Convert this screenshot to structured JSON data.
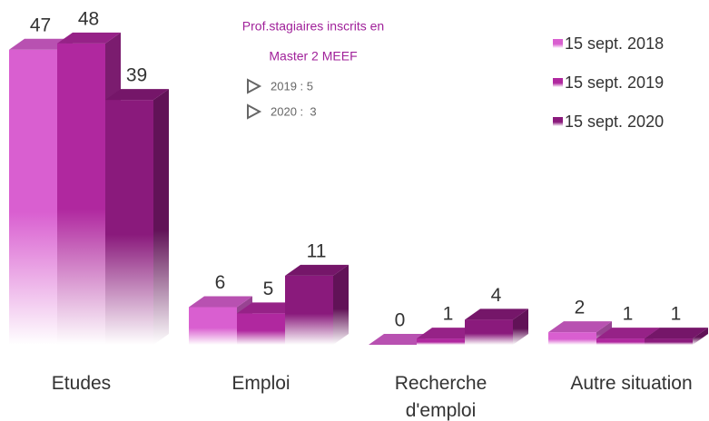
{
  "chart_data": {
    "type": "bar3d",
    "categories": [
      "Etudes",
      "Emploi",
      "Recherche\nd'emploi",
      "Autre situation"
    ],
    "series": [
      {
        "name": "15 sept. 2018",
        "color": "#d95fd0",
        "values": [
          47,
          6,
          0,
          2
        ]
      },
      {
        "name": "15 sept. 2019",
        "color": "#b0289f",
        "values": [
          48,
          5,
          1,
          1
        ]
      },
      {
        "name": "15 sept. 2020",
        "color": "#8a1a7c",
        "values": [
          39,
          11,
          4,
          1
        ]
      }
    ],
    "annotation": {
      "title": [
        "Prof.stagiaires inscrits en",
        "Master 2 MEEF"
      ],
      "items": [
        "2019 : 5",
        "2020 :  3"
      ]
    },
    "legend": "top-right"
  }
}
